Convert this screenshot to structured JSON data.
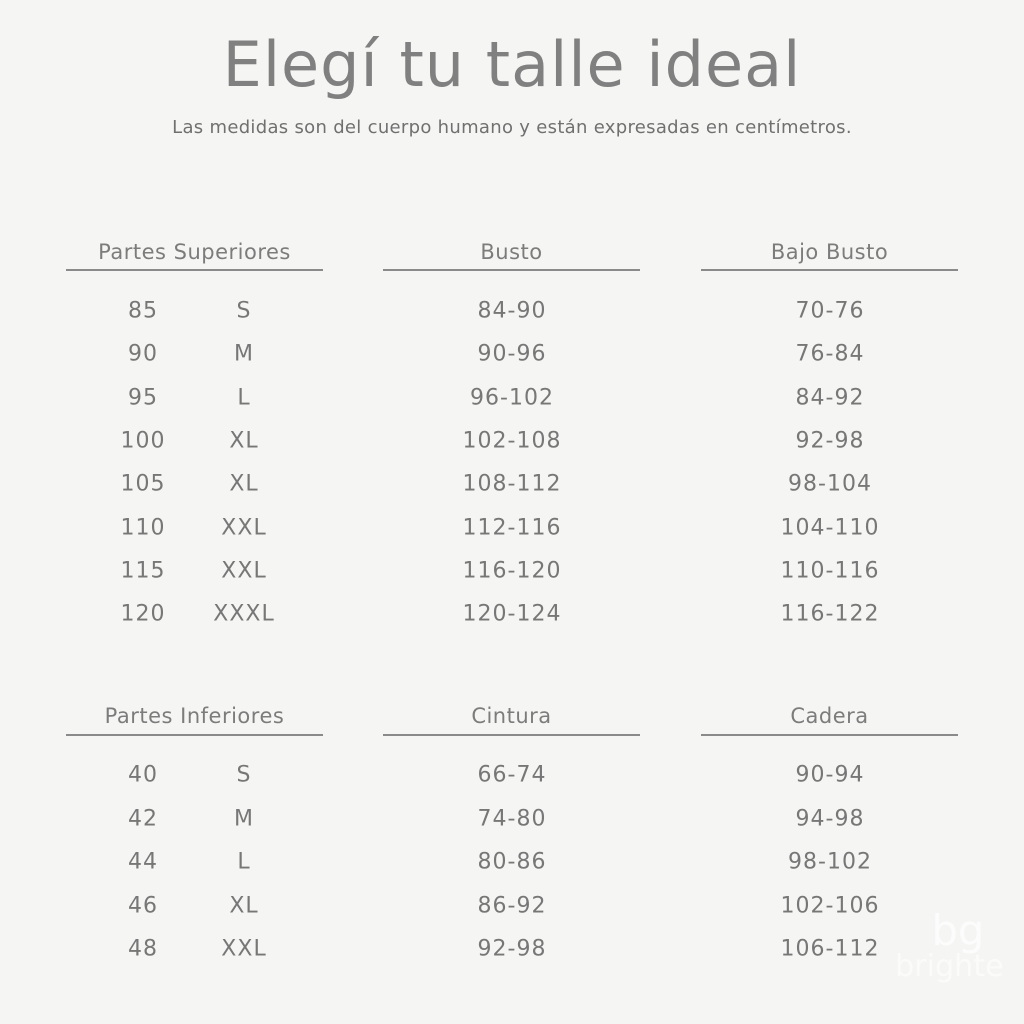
{
  "title": "Elegí tu talle ideal",
  "subtitle": "Las medidas son del cuerpo humano y están expresadas en centímetros.",
  "upper": {
    "headers": [
      "Partes Superiores",
      "Busto",
      "Bajo Busto"
    ],
    "rows": [
      [
        "85",
        "S",
        "84-90",
        "70-76"
      ],
      [
        "90",
        "M",
        "90-96",
        "76-84"
      ],
      [
        "95",
        "L",
        "96-102",
        "84-92"
      ],
      [
        "100",
        "XL",
        "102-108",
        "92-98"
      ],
      [
        "105",
        "XL",
        "108-112",
        "98-104"
      ],
      [
        "110",
        "XXL",
        "112-116",
        "104-110"
      ],
      [
        "115",
        "XXL",
        "116-120",
        "110-116"
      ],
      [
        "120",
        "XXXL",
        "120-124",
        "116-122"
      ]
    ]
  },
  "lower": {
    "headers": [
      "Partes Inferiores",
      "Cintura",
      "Cadera"
    ],
    "rows": [
      [
        "40",
        "S",
        "66-74",
        "90-94"
      ],
      [
        "42",
        "M",
        "74-80",
        "94-98"
      ],
      [
        "44",
        "L",
        "80-86",
        "98-102"
      ],
      [
        "46",
        "XL",
        "86-92",
        "102-106"
      ],
      [
        "48",
        "XXL",
        "92-98",
        "106-112"
      ]
    ]
  },
  "watermark": "bg brighte"
}
